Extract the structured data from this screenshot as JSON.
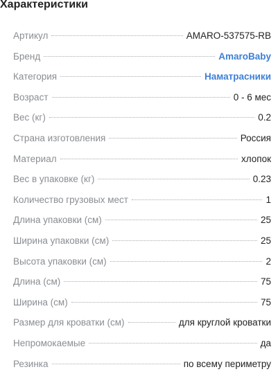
{
  "section": {
    "title": "Характеристики"
  },
  "specs": [
    {
      "label": "Артикул",
      "value": "AMARO-537575-RB"
    },
    {
      "label": "Бренд",
      "value": "AmaroBaby",
      "link": true
    },
    {
      "label": "Категория",
      "value": "Наматрасники",
      "link": true
    },
    {
      "label": "Возраст",
      "value": "0 - 6 мес"
    },
    {
      "label": "Вес (кг)",
      "value": "0.2"
    },
    {
      "label": "Страна изготовления",
      "value": "Россия"
    },
    {
      "label": "Материал",
      "value": "хлопок"
    },
    {
      "label": "Вес в упаковке (кг)",
      "value": "0.23"
    },
    {
      "label": "Количество грузовых мест",
      "value": "1"
    },
    {
      "label": "Длина упаковки (см)",
      "value": "25"
    },
    {
      "label": "Ширина упаковки (см)",
      "value": "25"
    },
    {
      "label": "Высота упаковки (см)",
      "value": "2"
    },
    {
      "label": "Длина (см)",
      "value": "75"
    },
    {
      "label": "Ширина (см)",
      "value": "75"
    },
    {
      "label": "Размер для кроватки (см)",
      "value": "для круглой кроватки"
    },
    {
      "label": "Непромокаемые",
      "value": "да"
    },
    {
      "label": "Резинка",
      "value": "по всему периметру"
    }
  ],
  "colors": {
    "label": "#8a8d92",
    "value": "#222222",
    "link": "#3d7fd6"
  }
}
